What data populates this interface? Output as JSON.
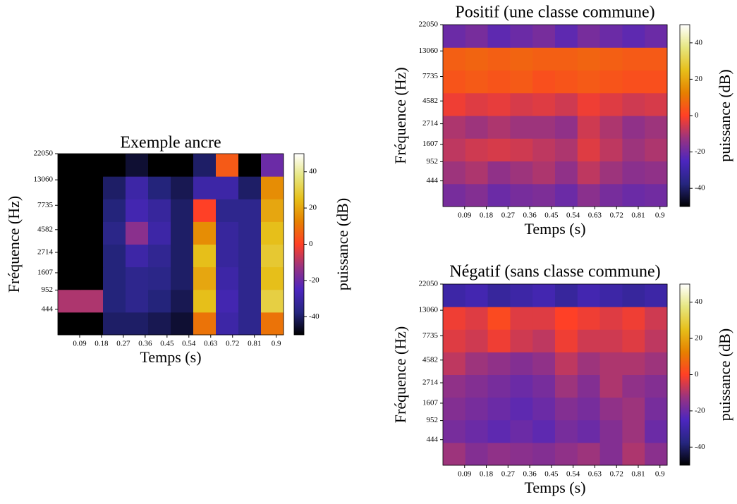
{
  "chart_data": [
    {
      "type": "heatmap",
      "title": "Exemple ancre",
      "x_label": "Temps (s)",
      "y_label": "Fréquence (Hz)",
      "colorbar_label": "puissance (dB)",
      "xlim": [
        0,
        0.93
      ],
      "xticks": [
        0.09,
        0.18,
        0.27,
        0.36,
        0.45,
        0.54,
        0.63,
        0.72,
        0.81,
        0.9
      ],
      "ylim": [
        0,
        22050
      ],
      "yticks": [
        444,
        952,
        1607,
        2714,
        4582,
        7735,
        13060,
        22050
      ],
      "y_scale": "mel",
      "clim": [
        -50,
        50
      ],
      "cticks": [
        -40,
        -20,
        0,
        20,
        40
      ],
      "z": [
        [
          -50,
          -50,
          -40,
          -40,
          -42,
          -45,
          10,
          -30,
          -35,
          10
        ],
        [
          -10,
          -10,
          -38,
          -35,
          -38,
          -42,
          25,
          -28,
          -35,
          30
        ],
        [
          -50,
          -50,
          -38,
          -35,
          -36,
          -40,
          20,
          -30,
          -35,
          25
        ],
        [
          -50,
          -50,
          -38,
          -30,
          -34,
          -40,
          25,
          -32,
          -35,
          28
        ],
        [
          -50,
          -50,
          -36,
          -15,
          -30,
          -40,
          15,
          -32,
          -35,
          25
        ],
        [
          -50,
          -50,
          -38,
          -28,
          -32,
          -40,
          0,
          -35,
          -35,
          20
        ],
        [
          -50,
          -50,
          -40,
          -30,
          -38,
          -42,
          -30,
          -30,
          -40,
          15
        ],
        [
          -50,
          -50,
          -50,
          -45,
          -50,
          -50,
          -40,
          5,
          -50,
          -20
        ]
      ]
    },
    {
      "type": "heatmap",
      "title": "Positif (une classe commune)",
      "x_label": "Temps (s)",
      "y_label": "Fréquence (Hz)",
      "colorbar_label": "puissance (dB)",
      "xlim": [
        0,
        0.93
      ],
      "xticks": [
        0.09,
        0.18,
        0.27,
        0.36,
        0.45,
        0.54,
        0.63,
        0.72,
        0.81,
        0.9
      ],
      "ylim": [
        0,
        22050
      ],
      "yticks": [
        444,
        952,
        1607,
        2714,
        4582,
        7735,
        13060,
        22050
      ],
      "y_scale": "mel",
      "clim": [
        -50,
        50
      ],
      "cticks": [
        -40,
        -20,
        0,
        20,
        40
      ],
      "z": [
        [
          -18,
          -16,
          -20,
          -18,
          -17,
          -20,
          -15,
          -18,
          -20,
          -19
        ],
        [
          -12,
          -10,
          -14,
          -12,
          -10,
          -14,
          -8,
          -12,
          -15,
          -14
        ],
        [
          -8,
          -6,
          -5,
          -6,
          -8,
          -10,
          -4,
          -8,
          -12,
          -10
        ],
        [
          -10,
          -12,
          -10,
          -12,
          -12,
          -14,
          -6,
          -10,
          -14,
          -12
        ],
        [
          -2,
          -4,
          -3,
          -5,
          -4,
          -6,
          -2,
          -4,
          -6,
          -5
        ],
        [
          4,
          5,
          4,
          5,
          3,
          4,
          5,
          4,
          3,
          3
        ],
        [
          6,
          7,
          6,
          7,
          6,
          6,
          7,
          6,
          5,
          5
        ],
        [
          -20,
          -18,
          -22,
          -20,
          -18,
          -22,
          -18,
          -20,
          -22,
          -20
        ]
      ]
    },
    {
      "type": "heatmap",
      "title": "Négatif (sans classe commune)",
      "x_label": "Temps (s)",
      "y_label": "Fréquence (Hz)",
      "colorbar_label": "puissance (dB)",
      "xlim": [
        0,
        0.93
      ],
      "xticks": [
        0.09,
        0.18,
        0.27,
        0.36,
        0.45,
        0.54,
        0.63,
        0.72,
        0.81,
        0.9
      ],
      "ylim": [
        0,
        22050
      ],
      "yticks": [
        444,
        952,
        1607,
        2714,
        4582,
        7735,
        13060,
        22050
      ],
      "y_scale": "mel",
      "clim": [
        -50,
        50
      ],
      "cticks": [
        -40,
        -20,
        0,
        20,
        40
      ],
      "z": [
        [
          -12,
          -16,
          -14,
          -15,
          -16,
          -14,
          -12,
          -16,
          -10,
          -15
        ],
        [
          -18,
          -20,
          -22,
          -20,
          -22,
          -18,
          -20,
          -16,
          -12,
          -20
        ],
        [
          -16,
          -18,
          -20,
          -22,
          -20,
          -16,
          -18,
          -14,
          -12,
          -18
        ],
        [
          -14,
          -16,
          -18,
          -20,
          -18,
          -12,
          -16,
          -10,
          -14,
          -16
        ],
        [
          -8,
          -12,
          -14,
          -16,
          -14,
          -8,
          -12,
          -10,
          -10,
          -12
        ],
        [
          -4,
          -6,
          -2,
          -6,
          -8,
          -2,
          -6,
          -6,
          -4,
          -8
        ],
        [
          -2,
          -4,
          2,
          -4,
          -4,
          0,
          -2,
          -4,
          -2,
          -6
        ],
        [
          -30,
          -28,
          -32,
          -30,
          -28,
          -32,
          -28,
          -30,
          -32,
          -30
        ]
      ]
    }
  ]
}
